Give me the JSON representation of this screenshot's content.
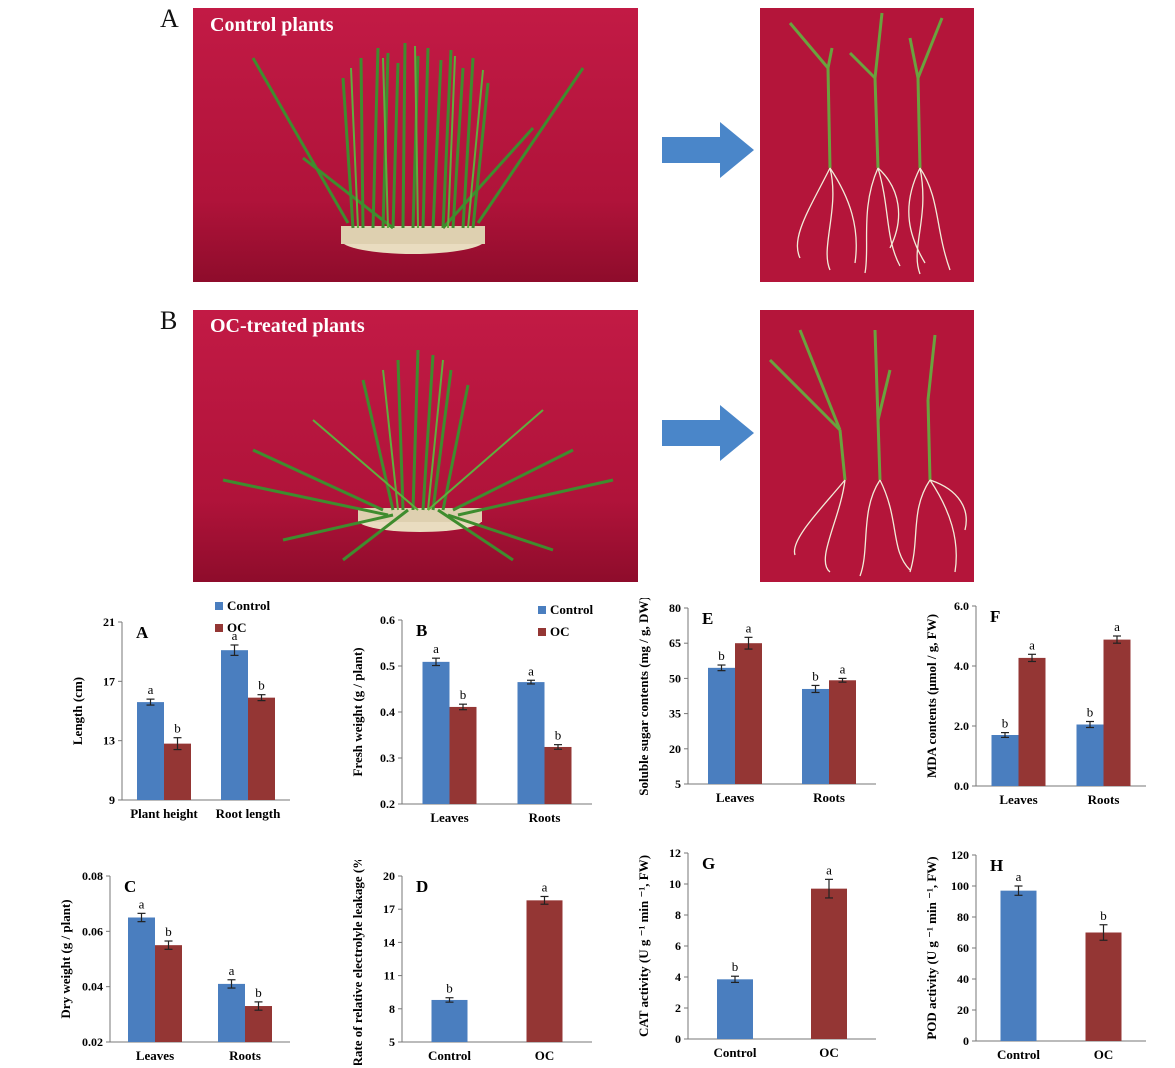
{
  "photos": {
    "top_letter": "A",
    "top_caption": "Control plants",
    "bottom_letter": "B",
    "bottom_caption": "OC-treated plants",
    "background_color": "#b4153a",
    "arrow_color": "#4a86c9"
  },
  "colors": {
    "control": "#4a7ebf",
    "oc": "#943634"
  },
  "chart_data": [
    {
      "id": "A",
      "type": "bar",
      "panel_label": "A",
      "categories": [
        "Plant height",
        "Root length"
      ],
      "ylabel": "Length (cm)",
      "ylim": [
        9,
        21
      ],
      "yticks": [
        "9",
        "13",
        "17",
        "21"
      ],
      "legend": [
        "Control",
        "OC"
      ],
      "series": [
        {
          "name": "Control",
          "values": [
            15.6,
            19.1
          ],
          "errors": [
            0.2,
            0.35
          ],
          "letters": [
            "a",
            "a"
          ]
        },
        {
          "name": "OC",
          "values": [
            12.8,
            15.9
          ],
          "errors": [
            0.4,
            0.2
          ],
          "letters": [
            "b",
            "b"
          ]
        }
      ]
    },
    {
      "id": "B",
      "type": "bar",
      "panel_label": "B",
      "categories": [
        "Leaves",
        "Roots"
      ],
      "ylabel": "Fresh weight (g / plant)",
      "ylim": [
        0.2,
        0.6
      ],
      "yticks": [
        "0.2",
        "0.3",
        "0.4",
        "0.5",
        "0.6"
      ],
      "legend": [
        "Control",
        "OC"
      ],
      "series": [
        {
          "name": "Control",
          "values": [
            0.509,
            0.465
          ],
          "errors": [
            0.008,
            0.004
          ],
          "letters": [
            "a",
            "a"
          ]
        },
        {
          "name": "OC",
          "values": [
            0.411,
            0.324
          ],
          "errors": [
            0.006,
            0.005
          ],
          "letters": [
            "b",
            "b"
          ]
        }
      ]
    },
    {
      "id": "E",
      "type": "bar",
      "panel_label": "E",
      "categories": [
        "Leaves",
        "Roots"
      ],
      "ylabel": "Soluble sugar contents (mg / g, DW)",
      "ylim": [
        5,
        80
      ],
      "yticks": [
        "5",
        "20",
        "35",
        "50",
        "65",
        "80"
      ],
      "legend": [],
      "series": [
        {
          "name": "Control",
          "values": [
            54.5,
            45.5
          ],
          "errors": [
            1.2,
            1.5
          ],
          "letters": [
            "b",
            "b"
          ]
        },
        {
          "name": "OC",
          "values": [
            65.0,
            49.2
          ],
          "errors": [
            2.5,
            0.8
          ],
          "letters": [
            "a",
            "a"
          ]
        }
      ]
    },
    {
      "id": "F",
      "type": "bar",
      "panel_label": "F",
      "categories": [
        "Leaves",
        "Roots"
      ],
      "ylabel": "MDA contents (μmol / g, FW)",
      "ylim": [
        0,
        6
      ],
      "yticks": [
        "0.0",
        "2.0",
        "4.0",
        "6.0"
      ],
      "legend": [],
      "series": [
        {
          "name": "Control",
          "values": [
            1.7,
            2.05
          ],
          "errors": [
            0.08,
            0.1
          ],
          "letters": [
            "b",
            "b"
          ]
        },
        {
          "name": "OC",
          "values": [
            4.27,
            4.88
          ],
          "errors": [
            0.12,
            0.12
          ],
          "letters": [
            "a",
            "a"
          ]
        }
      ]
    },
    {
      "id": "C",
      "type": "bar",
      "panel_label": "C",
      "categories": [
        "Leaves",
        "Roots"
      ],
      "ylabel": "Dry weight (g / plant)",
      "ylim": [
        0.02,
        0.08
      ],
      "yticks": [
        "0.02",
        "0.04",
        "0.06",
        "0.08"
      ],
      "legend": [],
      "series": [
        {
          "name": "Control",
          "values": [
            0.065,
            0.041
          ],
          "errors": [
            0.0015,
            0.0015
          ],
          "letters": [
            "a",
            "a"
          ]
        },
        {
          "name": "OC",
          "values": [
            0.055,
            0.033
          ],
          "errors": [
            0.0015,
            0.0015
          ],
          "letters": [
            "b",
            "b"
          ]
        }
      ]
    },
    {
      "id": "D",
      "type": "bar",
      "panel_label": "D",
      "categories": [
        "Control",
        "OC"
      ],
      "ylabel": "Rate of relative electrolyle leakage (%)",
      "ylim": [
        5,
        20
      ],
      "yticks": [
        "5",
        "8",
        "11",
        "14",
        "17",
        "20"
      ],
      "legend": [],
      "series": [
        {
          "name": "",
          "values": [
            8.8,
            17.8
          ],
          "errors": [
            0.2,
            0.35
          ],
          "letters": [
            "b",
            "a"
          ],
          "single": true
        }
      ]
    },
    {
      "id": "G",
      "type": "bar",
      "panel_label": "G",
      "categories": [
        "Control",
        "OC"
      ],
      "ylabel": "CAT activity (U g ⁻¹ min ⁻¹, FW)",
      "ylim": [
        0,
        12
      ],
      "yticks": [
        "0",
        "2",
        "4",
        "6",
        "8",
        "10",
        "12"
      ],
      "legend": [],
      "series": [
        {
          "name": "",
          "values": [
            3.85,
            9.7
          ],
          "errors": [
            0.2,
            0.6
          ],
          "letters": [
            "b",
            "a"
          ],
          "single": true
        }
      ]
    },
    {
      "id": "H",
      "type": "bar",
      "panel_label": "H",
      "categories": [
        "Control",
        "OC"
      ],
      "ylabel": "POD activity (U g ⁻¹ min ⁻¹, FW)",
      "ylim": [
        0,
        120
      ],
      "yticks": [
        "0",
        "20",
        "40",
        "60",
        "80",
        "100",
        "120"
      ],
      "legend": [],
      "series": [
        {
          "name": "",
          "values": [
            97,
            70
          ],
          "errors": [
            3,
            5
          ],
          "letters": [
            "a",
            "b"
          ],
          "single": true
        }
      ]
    }
  ]
}
